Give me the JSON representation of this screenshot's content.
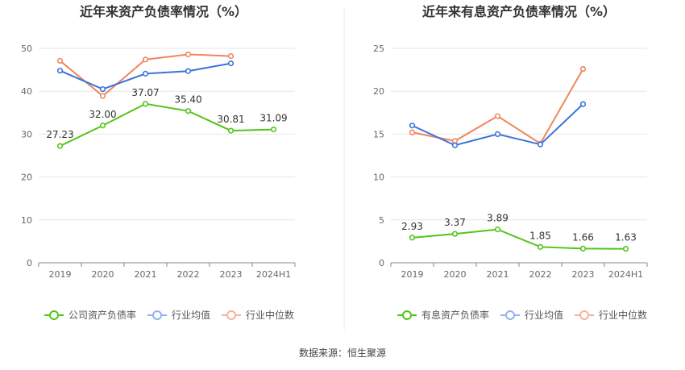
{
  "source_text": "数据来源：恒生聚源",
  "colors": {
    "company": "#52c41a",
    "average": "#3b73d9",
    "median": "#f0865e",
    "legend_average": "#8fb4f0",
    "legend_median": "#f5b49a",
    "grid": "#e6e6e6",
    "axis": "#888888",
    "divider": "#eeeeee"
  },
  "chart_data": [
    {
      "type": "line",
      "title": "近年来资产负债率情况（%）",
      "categories": [
        "2019",
        "2020",
        "2021",
        "2022",
        "2023",
        "2024H1"
      ],
      "ylim": [
        0,
        50
      ],
      "yticks": [
        0,
        10,
        20,
        30,
        40,
        50
      ],
      "grid": true,
      "legend_position": "bottom",
      "series": [
        {
          "name": "公司资产负债率",
          "key": "company",
          "values": [
            27.23,
            32.0,
            37.07,
            35.4,
            30.81,
            31.09
          ],
          "labels": [
            "27.23",
            "32.00",
            "37.07",
            "35.40",
            "30.81",
            "31.09"
          ]
        },
        {
          "name": "行业均值",
          "key": "average",
          "values": [
            44.8,
            40.5,
            44.1,
            44.7,
            46.5,
            null
          ]
        },
        {
          "name": "行业中位数",
          "key": "median",
          "values": [
            47.1,
            38.9,
            47.4,
            48.6,
            48.2,
            null
          ]
        }
      ]
    },
    {
      "type": "line",
      "title": "近年来有息资产负债率情况（%）",
      "categories": [
        "2019",
        "2020",
        "2021",
        "2022",
        "2023",
        "2024H1"
      ],
      "ylim": [
        0,
        25
      ],
      "yticks": [
        0,
        5,
        10,
        15,
        20,
        25
      ],
      "grid": true,
      "legend_position": "bottom",
      "series": [
        {
          "name": "有息资产负债率",
          "key": "company",
          "values": [
            2.93,
            3.37,
            3.89,
            1.85,
            1.66,
            1.63
          ],
          "labels": [
            "2.93",
            "3.37",
            "3.89",
            "1.85",
            "1.66",
            "1.63"
          ]
        },
        {
          "name": "行业均值",
          "key": "average",
          "values": [
            16.0,
            13.7,
            15.0,
            13.8,
            18.5,
            null
          ]
        },
        {
          "name": "行业中位数",
          "key": "median",
          "values": [
            15.2,
            14.2,
            17.1,
            13.9,
            22.6,
            null
          ]
        }
      ]
    }
  ]
}
